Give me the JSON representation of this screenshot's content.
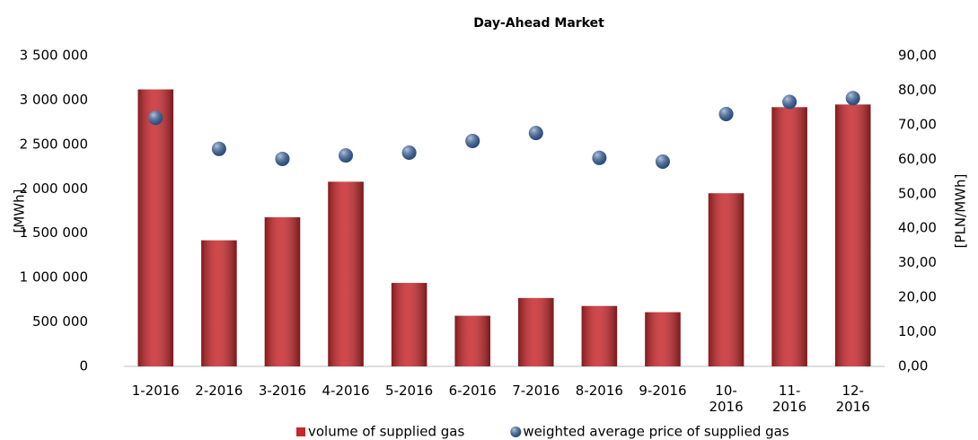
{
  "chart_data": {
    "type": "bar",
    "title": "Day-Ahead Market",
    "categories": [
      "1-2016",
      "2-2016",
      "3-2016",
      "4-2016",
      "5-2016",
      "6-2016",
      "7-2016",
      "8-2016",
      "9-2016",
      "10-2016",
      "11-2016",
      "12-2016"
    ],
    "series": [
      {
        "name": "volume of supplied gas",
        "type": "bar",
        "color": "#c8282c",
        "values": [
          3120000,
          1420000,
          1680000,
          2080000,
          940000,
          570000,
          770000,
          680000,
          610000,
          1950000,
          2920000,
          2950000
        ]
      },
      {
        "name": "weighted average price of supplied gas",
        "type": "scatter",
        "axis": "y2",
        "color": "#3b6db3",
        "values": [
          72.0,
          63.0,
          60.1,
          61.1,
          61.9,
          65.3,
          67.6,
          60.4,
          59.3,
          73.1,
          76.6,
          77.7
        ]
      }
    ],
    "ylabel": "[MWh]",
    "y2label": "[PLN/MWh]",
    "ylim": [
      0,
      3500000
    ],
    "yticks": [
      0,
      {
        "value": 500000,
        "label": "500 000"
      },
      {
        "value": 1000000,
        "label": "1 000 000"
      },
      {
        "value": 1500000,
        "label": "1 500 000"
      },
      {
        "value": 2000000,
        "label": "2 000 000"
      },
      {
        "value": 2500000,
        "label": "2 500 000"
      },
      {
        "value": 3000000,
        "label": "3 000 000"
      },
      {
        "value": 3500000,
        "label": "3 500 000"
      }
    ],
    "y2lim": [
      0,
      90
    ],
    "y2ticks": [
      {
        "value": 0,
        "label": "0,00"
      },
      {
        "value": 10,
        "label": "10,00"
      },
      {
        "value": 20,
        "label": "20,00"
      },
      {
        "value": 30,
        "label": "30,00"
      },
      {
        "value": 40,
        "label": "40,00"
      },
      {
        "value": 50,
        "label": "50,00"
      },
      {
        "value": 60,
        "label": "60,00"
      },
      {
        "value": 70,
        "label": "70,00"
      },
      {
        "value": 80,
        "label": "80,00"
      },
      {
        "value": 90,
        "label": "90,00"
      }
    ],
    "legend": "bottom"
  }
}
